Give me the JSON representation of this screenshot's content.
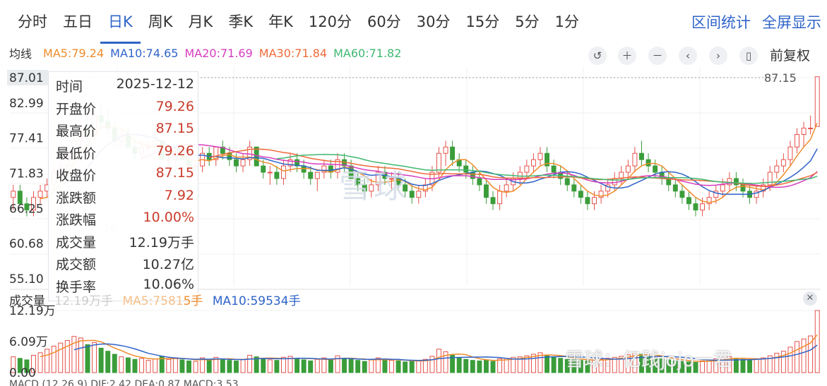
{
  "tabs": [
    {
      "label": "分时",
      "active": false
    },
    {
      "label": "五日",
      "active": false
    },
    {
      "label": "日K",
      "active": true
    },
    {
      "label": "周K",
      "active": false
    },
    {
      "label": "月K",
      "active": false
    },
    {
      "label": "季K",
      "active": false
    },
    {
      "label": "年K",
      "active": false
    },
    {
      "label": "120分",
      "active": false
    },
    {
      "label": "60分",
      "active": false
    },
    {
      "label": "30分",
      "active": false
    },
    {
      "label": "15分",
      "active": false
    },
    {
      "label": "5分",
      "active": false
    },
    {
      "label": "1分",
      "active": false
    }
  ],
  "right_links": {
    "range_stats": "区间统计",
    "fullscreen": "全屏显示"
  },
  "ma_bar": {
    "label": "均线",
    "items": [
      {
        "text": "MA5:79.24",
        "color": "#f08c2b"
      },
      {
        "text": "MA10:74.65",
        "color": "#2f64c8"
      },
      {
        "text": "MA20:71.69",
        "color": "#d63cbd"
      },
      {
        "text": "MA30:71.84",
        "color": "#ef6a3a"
      },
      {
        "text": "MA60:71.82",
        "color": "#3fb871"
      }
    ]
  },
  "controls": {
    "undo_icon": "undo-icon",
    "zoom_in": "＋",
    "zoom_out": "－",
    "left": "‹",
    "right": "›",
    "adjust": "前复权"
  },
  "price_axis": [
    "87.01",
    "82.99",
    "77.41",
    "71.83",
    "66.25",
    "60.68",
    "55.10"
  ],
  "high_marker": "87.15",
  "price_partial_label": ".74",
  "tooltip": {
    "rows": [
      {
        "k": "时间",
        "v": "2025-12-12",
        "color": "#333333"
      },
      {
        "k": "开盘价",
        "v": "79.26",
        "color": "#c93b2c"
      },
      {
        "k": "最高价",
        "v": "87.15",
        "color": "#c93b2c"
      },
      {
        "k": "最低价",
        "v": "79.26",
        "color": "#c93b2c"
      },
      {
        "k": "收盘价",
        "v": "87.15",
        "color": "#c93b2c"
      },
      {
        "k": "涨跌额",
        "v": "7.92",
        "color": "#c93b2c"
      },
      {
        "k": "涨跌幅",
        "v": "10.00%",
        "color": "#c93b2c"
      },
      {
        "k": "成交量",
        "v": "12.19万手",
        "color": "#333333"
      },
      {
        "k": "成交额",
        "v": "10.27亿",
        "color": "#333333"
      },
      {
        "k": "换手率",
        "v": "10.06%",
        "color": "#333333"
      }
    ]
  },
  "volume": {
    "label": "成交量",
    "label_partial": "12.19万手",
    "ma5_partial": "MA5:7581",
    "ma5_suffix": "5手",
    "ma10": "MA10:59534手",
    "axis": [
      "12.19万",
      "6.09万",
      "0.00"
    ]
  },
  "watermark": {
    "main": "雪球",
    "bottom": "雪球：亿践jojo一君"
  },
  "macd_label": "MACD (12,26,9)  DIF:2.42  DEA:0.87  MACD:3.53",
  "colors": {
    "up": "#e5514b",
    "down": "#3a9d3a",
    "accent": "#2f64c8",
    "ma5": "#f08c2b",
    "ma10": "#2f64c8",
    "ma20": "#d63cbd",
    "ma30": "#ef6a3a",
    "ma60": "#3fb871"
  },
  "chart_data": {
    "type": "candlestick",
    "price_range": [
      55.1,
      87.01
    ],
    "last_candle": {
      "date": "2025-12-12",
      "open": 79.26,
      "high": 87.15,
      "low": 79.26,
      "close": 87.15
    },
    "ma_last": {
      "MA5": 79.24,
      "MA10": 74.65,
      "MA20": 71.69,
      "MA30": 71.84,
      "MA60": 71.82
    },
    "candles": [
      [
        68,
        70,
        66,
        69
      ],
      [
        69,
        70,
        67,
        67
      ],
      [
        67,
        68,
        65,
        66
      ],
      [
        66,
        69,
        65,
        68
      ],
      [
        68,
        70,
        67,
        69
      ],
      [
        69,
        71,
        68,
        70
      ],
      [
        70,
        73,
        69,
        72
      ],
      [
        72,
        74,
        71,
        73
      ],
      [
        73,
        76,
        72,
        75
      ],
      [
        75,
        78,
        74,
        77
      ],
      [
        77,
        80,
        76,
        79
      ],
      [
        79,
        81,
        77,
        78
      ],
      [
        78,
        82,
        77,
        81
      ],
      [
        81,
        83,
        79,
        80
      ],
      [
        80,
        82,
        78,
        79
      ],
      [
        79,
        80,
        76,
        77
      ],
      [
        77,
        79,
        76,
        78
      ],
      [
        78,
        79,
        76,
        76
      ],
      [
        76,
        77,
        74,
        75
      ],
      [
        75,
        77,
        74,
        76
      ],
      [
        76,
        77,
        75,
        76
      ],
      [
        76,
        78,
        75,
        77
      ],
      [
        77,
        77,
        74,
        74
      ],
      [
        74,
        75,
        73,
        74
      ],
      [
        74,
        76,
        73,
        75
      ],
      [
        75,
        76,
        74,
        74
      ],
      [
        74,
        75,
        73,
        73
      ],
      [
        73,
        74,
        72,
        73
      ],
      [
        73,
        76,
        72,
        75
      ],
      [
        75,
        76,
        73,
        74
      ],
      [
        74,
        76,
        73,
        76
      ],
      [
        76,
        77,
        74,
        75
      ],
      [
        75,
        76,
        73,
        74
      ],
      [
        74,
        75,
        72,
        73
      ],
      [
        73,
        75,
        72,
        74
      ],
      [
        74,
        77,
        73,
        76
      ],
      [
        76,
        76,
        73,
        73
      ],
      [
        73,
        74,
        71,
        72
      ],
      [
        72,
        73,
        70,
        72
      ],
      [
        72,
        73,
        70,
        71
      ],
      [
        71,
        74,
        70,
        73
      ],
      [
        73,
        75,
        72,
        74
      ],
      [
        74,
        75,
        72,
        73
      ],
      [
        73,
        74,
        71,
        72
      ],
      [
        72,
        73,
        70,
        71
      ],
      [
        71,
        72,
        69,
        72
      ],
      [
        72,
        74,
        71,
        73
      ],
      [
        73,
        74,
        71,
        72
      ],
      [
        72,
        75,
        71,
        74
      ],
      [
        74,
        75,
        72,
        73
      ],
      [
        73,
        74,
        71,
        71
      ],
      [
        71,
        72,
        69,
        70
      ],
      [
        70,
        71,
        68,
        69
      ],
      [
        69,
        71,
        68,
        70
      ],
      [
        70,
        73,
        69,
        72
      ],
      [
        72,
        73,
        70,
        71
      ],
      [
        71,
        72,
        69,
        71
      ],
      [
        71,
        72,
        69,
        70
      ],
      [
        70,
        71,
        68,
        69
      ],
      [
        69,
        70,
        67,
        68
      ],
      [
        68,
        70,
        67,
        69
      ],
      [
        69,
        71,
        68,
        70
      ],
      [
        70,
        73,
        69,
        72
      ],
      [
        72,
        76,
        71,
        75
      ],
      [
        75,
        77,
        73,
        76
      ],
      [
        76,
        77,
        73,
        74
      ],
      [
        74,
        75,
        72,
        73
      ],
      [
        73,
        74,
        71,
        72
      ],
      [
        72,
        73,
        70,
        71
      ],
      [
        71,
        72,
        69,
        70
      ],
      [
        70,
        71,
        67,
        68
      ],
      [
        68,
        69,
        66,
        67
      ],
      [
        67,
        70,
        66,
        69
      ],
      [
        69,
        71,
        68,
        70
      ],
      [
        70,
        72,
        69,
        71
      ],
      [
        71,
        73,
        70,
        72
      ],
      [
        72,
        74,
        71,
        73
      ],
      [
        73,
        75,
        72,
        74
      ],
      [
        74,
        76,
        73,
        75
      ],
      [
        75,
        76,
        72,
        73
      ],
      [
        73,
        74,
        71,
        72
      ],
      [
        72,
        73,
        70,
        71
      ],
      [
        71,
        72,
        69,
        70
      ],
      [
        70,
        71,
        68,
        69
      ],
      [
        69,
        70,
        67,
        68
      ],
      [
        68,
        69,
        66,
        67
      ],
      [
        67,
        69,
        66,
        68
      ],
      [
        68,
        70,
        67,
        69
      ],
      [
        69,
        71,
        68,
        70
      ],
      [
        70,
        72,
        69,
        71
      ],
      [
        71,
        73,
        70,
        72
      ],
      [
        72,
        74,
        71,
        73
      ],
      [
        73,
        76,
        72,
        75
      ],
      [
        75,
        77,
        73,
        74
      ],
      [
        74,
        75,
        72,
        73
      ],
      [
        73,
        74,
        71,
        72
      ],
      [
        72,
        73,
        70,
        71
      ],
      [
        71,
        72,
        69,
        70
      ],
      [
        70,
        71,
        68,
        69
      ],
      [
        69,
        70,
        67,
        68
      ],
      [
        68,
        69,
        66,
        67
      ],
      [
        67,
        68,
        65,
        66
      ],
      [
        66,
        68,
        65,
        67
      ],
      [
        67,
        69,
        66,
        68
      ],
      [
        68,
        70,
        67,
        69
      ],
      [
        69,
        71,
        68,
        70
      ],
      [
        70,
        72,
        69,
        71
      ],
      [
        71,
        72,
        69,
        70
      ],
      [
        70,
        71,
        68,
        69
      ],
      [
        69,
        70,
        67,
        68
      ],
      [
        68,
        70,
        67,
        69
      ],
      [
        69,
        71,
        68,
        70
      ],
      [
        70,
        73,
        69,
        72
      ],
      [
        72,
        74,
        71,
        73
      ],
      [
        73,
        75,
        72,
        74
      ],
      [
        74,
        77,
        73,
        76
      ],
      [
        76,
        79,
        75,
        78
      ],
      [
        78,
        80,
        76,
        79
      ],
      [
        79,
        81,
        78,
        79
      ],
      [
        79.26,
        87.15,
        79.26,
        87.15
      ]
    ],
    "volumes": [
      3.1,
      2.8,
      2.5,
      3.4,
      3.9,
      4.6,
      5.2,
      5.8,
      6.3,
      7.1,
      6.8,
      5.5,
      5.9,
      4.8,
      4.2,
      3.6,
      3.1,
      2.9,
      2.6,
      2.8,
      2.4,
      2.7,
      3.2,
      2.6,
      2.9,
      2.5,
      2.3,
      2.2,
      2.9,
      2.6,
      3.0,
      2.7,
      2.4,
      2.3,
      2.6,
      3.4,
      3.1,
      2.7,
      2.5,
      2.4,
      3.0,
      3.2,
      2.8,
      2.5,
      2.3,
      2.6,
      2.9,
      2.5,
      3.3,
      2.8,
      2.6,
      2.4,
      2.2,
      2.5,
      2.9,
      2.6,
      2.4,
      2.3,
      2.1,
      2.2,
      2.4,
      2.6,
      3.2,
      4.6,
      4.1,
      3.4,
      2.9,
      2.6,
      2.4,
      2.3,
      2.5,
      2.2,
      2.7,
      2.8,
      3.0,
      3.1,
      3.3,
      3.6,
      3.9,
      3.4,
      3.0,
      2.8,
      2.6,
      2.5,
      2.4,
      2.3,
      2.5,
      2.6,
      2.8,
      3.0,
      3.2,
      3.5,
      4.0,
      3.6,
      3.2,
      2.9,
      2.7,
      2.5,
      2.3,
      2.2,
      2.1,
      2.0,
      2.3,
      2.5,
      2.7,
      2.9,
      3.1,
      2.8,
      2.6,
      2.4,
      2.7,
      2.9,
      3.3,
      3.8,
      4.2,
      5.0,
      6.1,
      6.6,
      7.2,
      12.19
    ],
    "volume_range": [
      0,
      12.19
    ]
  }
}
